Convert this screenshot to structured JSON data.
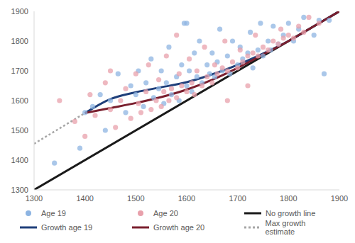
{
  "chart_data": {
    "type": "scatter",
    "xlim": [
      1300,
      1900
    ],
    "ylim": [
      1300,
      1900
    ],
    "xticks": [
      1300,
      1400,
      1500,
      1600,
      1700,
      1800,
      1900
    ],
    "yticks": [
      1300,
      1400,
      1500,
      1600,
      1700,
      1800,
      1900
    ],
    "grid": false,
    "legend": "bottom",
    "series": [
      {
        "name": "Age 19",
        "type": "scatter",
        "marker": "circle",
        "color": "#8db4e2",
        "x": [
          1340,
          1390,
          1400,
          1415,
          1430,
          1440,
          1450,
          1465,
          1480,
          1490,
          1500,
          1505,
          1515,
          1520,
          1530,
          1535,
          1545,
          1550,
          1555,
          1560,
          1565,
          1570,
          1580,
          1585,
          1590,
          1595,
          1600,
          1605,
          1610,
          1615,
          1620,
          1625,
          1630,
          1640,
          1645,
          1650,
          1655,
          1660,
          1665,
          1670,
          1680,
          1685,
          1690,
          1700,
          1705,
          1710,
          1720,
          1725,
          1730,
          1740,
          1745,
          1750,
          1760,
          1765,
          1770,
          1780,
          1790,
          1800,
          1810,
          1820,
          1830,
          1850,
          1860,
          1870,
          1880,
          1600
        ],
        "values": [
          1390,
          1440,
          1560,
          1580,
          1620,
          1500,
          1600,
          1690,
          1560,
          1650,
          1620,
          1700,
          1580,
          1660,
          1740,
          1610,
          1640,
          1700,
          1590,
          1660,
          1780,
          1620,
          1680,
          1600,
          1720,
          1860,
          1650,
          1700,
          1630,
          1760,
          1680,
          1800,
          1660,
          1720,
          1690,
          1760,
          1680,
          1730,
          1840,
          1700,
          1750,
          1690,
          1800,
          1720,
          1780,
          1740,
          1760,
          1830,
          1710,
          1770,
          1860,
          1750,
          1800,
          1770,
          1850,
          1790,
          1820,
          1860,
          1800,
          1840,
          1880,
          1820,
          1870,
          1690,
          1870,
          1860
        ]
      },
      {
        "name": "Age 20",
        "type": "scatter",
        "marker": "circle",
        "color": "#e8a0ab",
        "x": [
          1350,
          1380,
          1400,
          1410,
          1420,
          1440,
          1450,
          1460,
          1470,
          1480,
          1490,
          1500,
          1505,
          1510,
          1520,
          1525,
          1530,
          1540,
          1545,
          1550,
          1555,
          1560,
          1565,
          1570,
          1580,
          1585,
          1590,
          1600,
          1605,
          1610,
          1615,
          1620,
          1630,
          1635,
          1640,
          1650,
          1655,
          1660,
          1670,
          1675,
          1680,
          1690,
          1700,
          1705,
          1710,
          1720,
          1730,
          1735,
          1740,
          1750,
          1760,
          1770,
          1780,
          1785,
          1790,
          1800,
          1810,
          1820,
          1830,
          1840,
          1860,
          1680,
          1720,
          1580,
          1450
        ],
        "values": [
          1600,
          1530,
          1480,
          1620,
          1550,
          1660,
          1570,
          1510,
          1600,
          1640,
          1540,
          1690,
          1590,
          1560,
          1630,
          1720,
          1570,
          1600,
          1670,
          1580,
          1630,
          1750,
          1600,
          1640,
          1610,
          1690,
          1650,
          1630,
          1740,
          1660,
          1620,
          1700,
          1650,
          1780,
          1680,
          1660,
          1720,
          1690,
          1710,
          1800,
          1700,
          1730,
          1710,
          1770,
          1730,
          1750,
          1760,
          1820,
          1750,
          1780,
          1770,
          1800,
          1790,
          1840,
          1810,
          1820,
          1810,
          1850,
          1830,
          1880,
          1860,
          1600,
          1650,
          1820,
          1700
        ]
      },
      {
        "name": "No growth line",
        "type": "line",
        "line_style": "solid",
        "color": "#1a1a1a",
        "x": [
          1300,
          1900
        ],
        "values": [
          1300,
          1900
        ]
      },
      {
        "name": "Growth age 19",
        "type": "line",
        "line_style": "solid",
        "color": "#1f3f7a",
        "x": [
          1400,
          1450,
          1500,
          1550,
          1600,
          1650,
          1700,
          1750,
          1800,
          1850,
          1900
        ],
        "values": [
          1558,
          1605,
          1628,
          1645,
          1662,
          1688,
          1720,
          1758,
          1800,
          1850,
          1900
        ]
      },
      {
        "name": "Growth age 20",
        "type": "line",
        "line_style": "solid",
        "color": "#7a1f2e",
        "x": [
          1400,
          1450,
          1500,
          1550,
          1600,
          1650,
          1700,
          1750,
          1800,
          1850,
          1900
        ],
        "values": [
          1558,
          1575,
          1592,
          1612,
          1637,
          1670,
          1710,
          1755,
          1800,
          1850,
          1900
        ]
      },
      {
        "name": "Max growth estimate",
        "type": "line",
        "line_style": "dotted",
        "color": "#a6a6a6",
        "x": [
          1300,
          1400
        ],
        "values": [
          1455,
          1558
        ]
      }
    ]
  }
}
